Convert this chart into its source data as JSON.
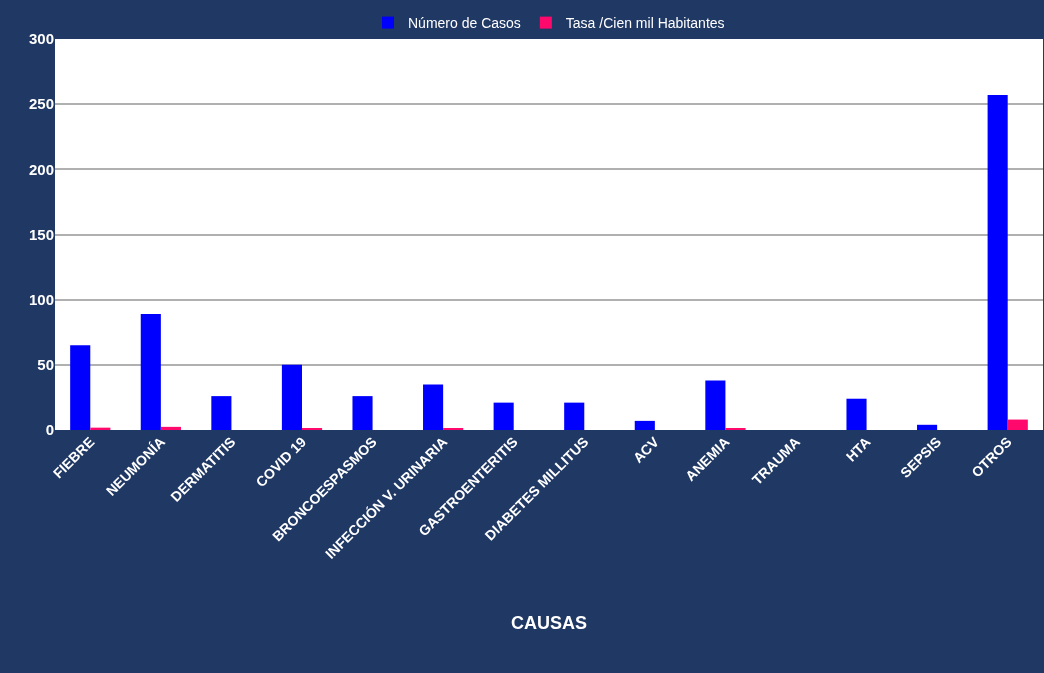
{
  "chart_data": {
    "type": "bar",
    "categories": [
      "FIEBRE",
      "NEUMONÍA",
      "DERMATITIS",
      "COVID 19",
      "BRONCOESPASMOS",
      "INFECCIÓN V. URINARIA",
      "GASTROENTERITIS",
      "DIABETES MILLITUS",
      "ACV",
      "ANEMIA",
      "TRAUMA",
      "HTA",
      "SEPSIS",
      "OTROS"
    ],
    "series": [
      {
        "name": "Número de Casos",
        "color": "#0000ff",
        "values": [
          65,
          89,
          26,
          50,
          26,
          35,
          21,
          21,
          7,
          38,
          0,
          24,
          4,
          257
        ]
      },
      {
        "name": "Tasa /Cien mil Habitantes",
        "color": "#ff0a6c",
        "values": [
          1.8,
          2.4,
          0,
          1.3,
          0,
          0.8,
          0,
          0,
          0,
          0.8,
          0,
          0,
          0,
          8
        ]
      }
    ],
    "xlabel": "CAUSAS",
    "ylim": [
      0,
      300
    ],
    "yticks": [
      0,
      50,
      100,
      150,
      200,
      250,
      300
    ],
    "grid": "y",
    "legend": "top"
  }
}
